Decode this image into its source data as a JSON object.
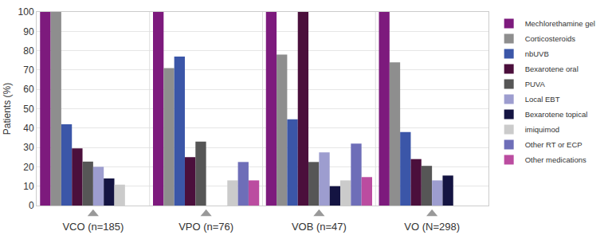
{
  "chart_data": {
    "type": "bar",
    "y_label": "Patients (%)",
    "categories": [
      "VCO (n=185)",
      "VPO (n=76)",
      "VOB (n=47)",
      "VO (N=298)"
    ],
    "series": [
      {
        "name": "Mechlorethamine gel",
        "color": "#7d1a7d",
        "values": [
          100,
          100,
          100,
          100
        ]
      },
      {
        "name": "Corticosteroids",
        "color": "#8e8e8e",
        "values": [
          100,
          71,
          78,
          74
        ]
      },
      {
        "name": "nbUVB",
        "color": "#3b56a8",
        "values": [
          42,
          77,
          44.5,
          38
        ]
      },
      {
        "name": "Bexarotene oral",
        "color": "#4b0f3c",
        "values": [
          29.5,
          25,
          100,
          24
        ]
      },
      {
        "name": "PUVA",
        "color": "#565656",
        "values": [
          22.7,
          33,
          22.5,
          20.5
        ]
      },
      {
        "name": "Local EBT",
        "color": "#9d9dcf",
        "values": [
          20,
          null,
          27.5,
          13
        ]
      },
      {
        "name": "Bexarotene topical",
        "color": "#141442",
        "values": [
          14,
          null,
          10,
          15.5
        ]
      },
      {
        "name": "imiquimod",
        "color": "#cbcbcb",
        "values": [
          10.8,
          13,
          13,
          null
        ]
      },
      {
        "name": "Other RT or ECP",
        "color": "#6e6eb8",
        "values": [
          null,
          22.5,
          32,
          null
        ]
      },
      {
        "name": "Other medications",
        "color": "#bb4ca0",
        "values": [
          null,
          13,
          14.7,
          null
        ]
      }
    ],
    "ylim": [
      0,
      100
    ],
    "yticks": [
      0,
      10,
      20,
      30,
      40,
      50,
      60,
      70,
      80,
      90,
      100
    ],
    "grid": true,
    "legend": "right"
  }
}
